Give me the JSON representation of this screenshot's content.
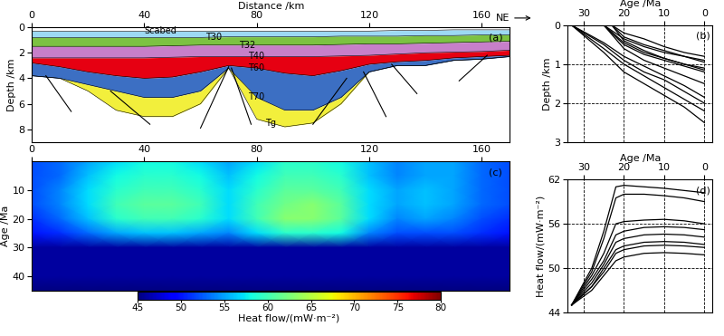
{
  "chart_data": [
    {
      "type": "area",
      "label": "(a)",
      "x_label": "Distance /km",
      "y_label": "Depth /km",
      "annotation": "NE",
      "xlim": [
        0,
        170
      ],
      "ylim": [
        9,
        0
      ],
      "xticks": [
        0,
        40,
        80,
        120,
        160
      ],
      "yticks": [
        0,
        2,
        4,
        6,
        8
      ],
      "x": [
        0,
        10,
        20,
        30,
        40,
        50,
        60,
        70,
        80,
        90,
        100,
        110,
        120,
        130,
        140,
        150,
        160,
        170
      ],
      "series": [
        {
          "name": "Scabed",
          "color": "#9dd9f3",
          "values": [
            0.3,
            0.3,
            0.3,
            0.3,
            0.3,
            0.3,
            0.3,
            0.3,
            0.3,
            0.3,
            0.3,
            0.3,
            0.3,
            0.25,
            0.25,
            0.2,
            0.2,
            0.2
          ]
        },
        {
          "name": "T30",
          "color": "#7cc242",
          "values": [
            0.8,
            0.8,
            0.8,
            0.8,
            0.8,
            0.8,
            0.8,
            0.75,
            0.75,
            0.75,
            0.75,
            0.7,
            0.7,
            0.7,
            0.65,
            0.65,
            0.6,
            0.6
          ]
        },
        {
          "name": "T32",
          "color": "#c77fc9",
          "values": [
            1.5,
            1.5,
            1.5,
            1.5,
            1.5,
            1.45,
            1.4,
            1.4,
            1.4,
            1.4,
            1.4,
            1.35,
            1.3,
            1.3,
            1.25,
            1.2,
            1.15,
            1.1
          ]
        },
        {
          "name": "T40",
          "color": "#e60012",
          "values": [
            2.4,
            2.4,
            2.4,
            2.4,
            2.4,
            2.35,
            2.3,
            2.3,
            2.3,
            2.3,
            2.3,
            2.25,
            2.2,
            2.1,
            2.0,
            1.95,
            1.9,
            1.8
          ]
        },
        {
          "name": "T60",
          "color": "#3c6fc3",
          "values": [
            2.8,
            3.1,
            3.5,
            3.8,
            4.0,
            3.9,
            3.5,
            3.0,
            3.2,
            3.6,
            3.8,
            3.4,
            2.9,
            2.7,
            2.6,
            2.4,
            2.3,
            2.2
          ]
        },
        {
          "name": "T70",
          "color": "#f2ef3c",
          "values": [
            3.8,
            4.0,
            4.5,
            5.0,
            5.5,
            5.5,
            5.0,
            3.2,
            5.5,
            6.5,
            6.5,
            5.5,
            3.5,
            3.0,
            3.0,
            2.6,
            2.5,
            2.3
          ]
        },
        {
          "name": "Tg",
          "values": [
            3.8,
            4.0,
            5.0,
            6.5,
            7.0,
            7.0,
            6.0,
            3.2,
            7.2,
            7.8,
            7.5,
            6.0,
            3.5,
            3.0,
            3.0,
            2.6,
            2.5,
            2.3
          ]
        }
      ],
      "faults": [
        [
          [
            5,
            3.8
          ],
          [
            14,
            6.6
          ]
        ],
        [
          [
            28,
            5.0
          ],
          [
            42,
            7.6
          ]
        ],
        [
          [
            70,
            3.1
          ],
          [
            60,
            7.9
          ]
        ],
        [
          [
            71,
            3.2
          ],
          [
            78,
            7.6
          ]
        ],
        [
          [
            100,
            7.6
          ],
          [
            112,
            4.0
          ]
        ],
        [
          [
            118,
            3.5
          ],
          [
            126,
            7.0
          ]
        ],
        [
          [
            128,
            2.9
          ],
          [
            137,
            5.2
          ]
        ],
        [
          [
            162,
            2.2
          ],
          [
            152,
            4.2
          ]
        ]
      ]
    },
    {
      "type": "line",
      "label": "(b)",
      "x_label": "Age /Ma",
      "y_label": "Depth /km",
      "xlim": [
        34,
        -2
      ],
      "ylim": [
        3,
        0
      ],
      "xticks": [
        30,
        20,
        10,
        0
      ],
      "yticks": [
        0,
        1,
        2,
        3
      ],
      "grid": true,
      "color": "#000000",
      "series": [
        {
          "x": [
            33,
            25,
            20,
            15,
            10,
            5,
            0
          ],
          "values": [
            0,
            0.6,
            1.0,
            1.3,
            1.6,
            1.9,
            2.2
          ]
        },
        {
          "x": [
            33,
            25,
            20,
            15,
            10,
            5,
            0
          ],
          "values": [
            0,
            0.7,
            1.2,
            1.5,
            1.8,
            2.1,
            2.5
          ]
        },
        {
          "x": [
            33,
            25,
            20,
            15,
            10,
            5,
            0
          ],
          "values": [
            0,
            0.5,
            0.9,
            1.2,
            1.4,
            1.7,
            2.0
          ]
        },
        {
          "x": [
            33,
            25,
            20,
            15,
            10,
            5,
            0
          ],
          "values": [
            0,
            0.45,
            0.8,
            1.05,
            1.3,
            1.55,
            1.85
          ]
        },
        {
          "x": [
            25,
            20,
            15,
            10,
            5,
            0
          ],
          "values": [
            0,
            0.5,
            0.75,
            0.9,
            1.05,
            1.2
          ]
        },
        {
          "x": [
            25,
            20,
            15,
            10,
            5,
            0
          ],
          "values": [
            0,
            0.45,
            0.7,
            0.85,
            1.0,
            1.1
          ]
        },
        {
          "x": [
            25,
            20,
            15,
            10,
            5,
            0
          ],
          "values": [
            0,
            0.6,
            0.9,
            1.1,
            1.3,
            1.5
          ]
        },
        {
          "x": [
            25,
            20,
            15,
            10,
            5,
            0
          ],
          "values": [
            0,
            0.35,
            0.55,
            0.7,
            0.8,
            0.95
          ]
        },
        {
          "x": [
            23,
            20,
            15,
            10,
            5,
            0
          ],
          "values": [
            0,
            0.3,
            0.5,
            0.65,
            0.8,
            0.9
          ]
        },
        {
          "x": [
            23,
            20,
            15,
            10,
            5,
            0
          ],
          "values": [
            0,
            0.4,
            0.65,
            0.85,
            1.0,
            1.15
          ]
        },
        {
          "x": [
            23,
            20,
            15,
            10,
            5,
            0
          ],
          "values": [
            0,
            0.2,
            0.35,
            0.55,
            0.7,
            0.8
          ]
        }
      ]
    },
    {
      "type": "heatmap",
      "label": "(c)",
      "y_label": "Age /Ma",
      "xlim": [
        0,
        170
      ],
      "ylim": [
        45,
        0
      ],
      "xticks": [
        0,
        40,
        80,
        120,
        160
      ],
      "yticks": [
        10,
        20,
        30,
        40
      ],
      "x": [
        0,
        10,
        20,
        30,
        40,
        50,
        60,
        70,
        80,
        90,
        100,
        110,
        120,
        130,
        140,
        150,
        160,
        170
      ],
      "y": [
        0,
        5,
        10,
        15,
        20,
        25,
        30,
        35,
        40,
        45
      ],
      "cells": [
        [
          52,
          53,
          55,
          57,
          58,
          58,
          57,
          55,
          57,
          59,
          59,
          58,
          56,
          54,
          55,
          55,
          53,
          52
        ],
        [
          52,
          53,
          56,
          58,
          59,
          59,
          58,
          56,
          58,
          60,
          60,
          59,
          56,
          54,
          55,
          55,
          53,
          52
        ],
        [
          52,
          54,
          57,
          59,
          60,
          60,
          59,
          57,
          59,
          61,
          61,
          60,
          57,
          55,
          56,
          55,
          53,
          52
        ],
        [
          52,
          54,
          57,
          60,
          61,
          61,
          60,
          57,
          60,
          62,
          63,
          61,
          57,
          55,
          56,
          55,
          53,
          52
        ],
        [
          51,
          53,
          56,
          59,
          60,
          60,
          59,
          57,
          60,
          63,
          63,
          61,
          57,
          54,
          55,
          54,
          52,
          51
        ],
        [
          50,
          51,
          53,
          55,
          56,
          56,
          55,
          54,
          57,
          59,
          59,
          58,
          54,
          52,
          52,
          52,
          51,
          50
        ],
        [
          46,
          46,
          46,
          46,
          46,
          46,
          46,
          46,
          46,
          46,
          46,
          46,
          46,
          46,
          46,
          46,
          46,
          46
        ],
        [
          46,
          46,
          46,
          46,
          46,
          46,
          46,
          46,
          46,
          46,
          46,
          46,
          46,
          46,
          46,
          46,
          46,
          46
        ],
        [
          46,
          46,
          46,
          46,
          46,
          46,
          46,
          46,
          46,
          46,
          46,
          46,
          46,
          46,
          46,
          46,
          46,
          46
        ],
        [
          45,
          45,
          45,
          45,
          45,
          45,
          45,
          45,
          45,
          45,
          45,
          45,
          45,
          45,
          45,
          45,
          45,
          45
        ]
      ],
      "colorbar": {
        "label": "Heat flow/(mW·m⁻²)",
        "range": [
          45,
          80
        ],
        "ticks": [
          45,
          50,
          55,
          60,
          65,
          70,
          75,
          80
        ]
      }
    },
    {
      "type": "line",
      "label": "(d)",
      "x_label": "Age /Ma",
      "y_label": "Heat flow/(mW·m⁻²)",
      "xlim": [
        34,
        -2
      ],
      "ylim": [
        44,
        62
      ],
      "xticks": [
        30,
        20,
        10,
        0
      ],
      "yticks": [
        44,
        50,
        56,
        62
      ],
      "grid": true,
      "color": "#000000",
      "series": [
        {
          "x": [
            33,
            28,
            25,
            22,
            20,
            15,
            10,
            5,
            0
          ],
          "values": [
            45,
            50,
            55,
            61,
            61.2,
            61,
            60.8,
            60.5,
            60.2
          ]
        },
        {
          "x": [
            33,
            28,
            25,
            22,
            20,
            15,
            10,
            5,
            0
          ],
          "values": [
            45,
            49.5,
            54,
            59.5,
            60,
            60,
            59.8,
            59.5,
            59
          ]
        },
        {
          "x": [
            33,
            28,
            25,
            22,
            20,
            15,
            10,
            5,
            0
          ],
          "values": [
            45,
            49,
            52,
            56,
            56.3,
            56.5,
            56.6,
            56.4,
            56
          ]
        },
        {
          "x": [
            33,
            28,
            25,
            22,
            20,
            15,
            10,
            5,
            0
          ],
          "values": [
            45,
            48.5,
            51,
            54.5,
            55,
            55.5,
            55.6,
            55.5,
            55.2
          ]
        },
        {
          "x": [
            33,
            28,
            25,
            22,
            20,
            15,
            10,
            5,
            0
          ],
          "values": [
            45,
            48,
            50.5,
            53.5,
            54,
            54.5,
            54.6,
            54.5,
            54.2
          ]
        },
        {
          "x": [
            33,
            28,
            25,
            22,
            20,
            15,
            10,
            5,
            0
          ],
          "values": [
            45,
            47.5,
            50,
            52.5,
            53,
            53.5,
            53.6,
            53.5,
            53.2
          ]
        },
        {
          "x": [
            33,
            28,
            25,
            22,
            20,
            15,
            10,
            5,
            0
          ],
          "values": [
            45,
            47.5,
            49.5,
            52,
            52.5,
            53,
            53.1,
            53,
            52.8
          ]
        },
        {
          "x": [
            33,
            28,
            25,
            22,
            20,
            15,
            10,
            5,
            0
          ],
          "values": [
            45,
            47,
            49,
            51,
            51.5,
            52,
            52.1,
            52,
            51.8
          ]
        }
      ]
    }
  ]
}
